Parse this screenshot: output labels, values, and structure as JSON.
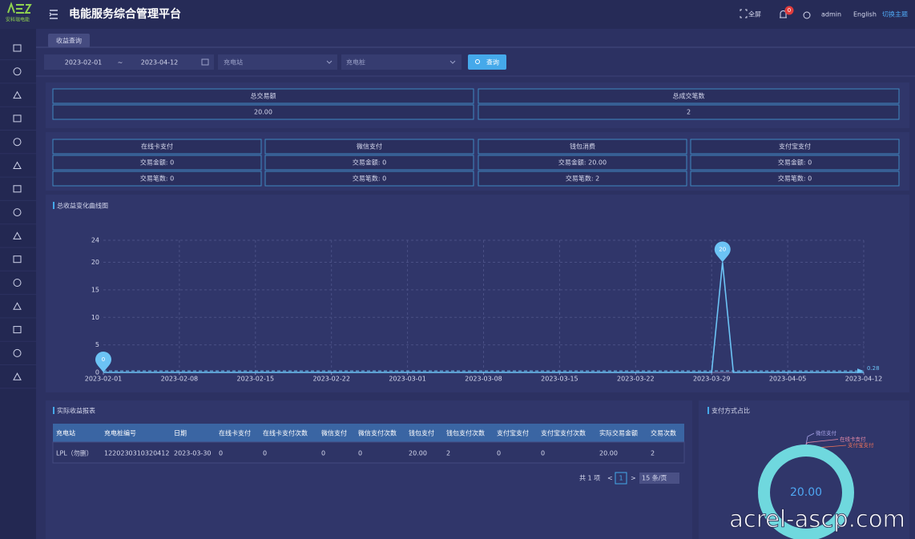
{
  "header": {
    "logo_text": "安科瑞电能",
    "title": "电能服务综合管理平台",
    "fullscreen": "全屏",
    "badge": "0",
    "user": "admin",
    "language": "English",
    "theme": "切换主题"
  },
  "tabs": [
    "收益查询"
  ],
  "filters": {
    "start_date": "2023-02-01",
    "separator": "~",
    "end_date": "2023-04-12",
    "station": "充电站",
    "pile": "充电桩",
    "button": "查询"
  },
  "summary": [
    {
      "label": "总交易额",
      "value": "20.00"
    },
    {
      "label": "总成交笔数",
      "value": "2"
    }
  ],
  "payments": [
    {
      "name": "在线卡支付",
      "amount": "交易金额: 0",
      "count": "交易笔数: 0"
    },
    {
      "name": "微信支付",
      "amount": "交易金额: 0",
      "count": "交易笔数: 0"
    },
    {
      "name": "钱包消费",
      "amount": "交易金额: 20.00",
      "count": "交易笔数: 2"
    },
    {
      "name": "支付宝支付",
      "amount": "交易金额: 0",
      "count": "交易笔数: 0"
    }
  ],
  "chart_data": [
    {
      "type": "line",
      "title": "总收益变化曲线图",
      "color": "#6cc3f5",
      "x": [
        "2023-02-01",
        "2023-02-02",
        "2023-02-03",
        "2023-02-04",
        "2023-02-05",
        "2023-02-06",
        "2023-02-07",
        "2023-02-08",
        "2023-02-09",
        "2023-02-10",
        "2023-02-11",
        "2023-02-12",
        "2023-02-13",
        "2023-02-14",
        "2023-02-15",
        "2023-02-16",
        "2023-02-17",
        "2023-02-18",
        "2023-02-19",
        "2023-02-20",
        "2023-02-21",
        "2023-02-22",
        "2023-02-23",
        "2023-02-24",
        "2023-02-25",
        "2023-02-26",
        "2023-02-27",
        "2023-02-28",
        "2023-03-01",
        "2023-03-02",
        "2023-03-03",
        "2023-03-04",
        "2023-03-05",
        "2023-03-06",
        "2023-03-07",
        "2023-03-08",
        "2023-03-09",
        "2023-03-10",
        "2023-03-11",
        "2023-03-12",
        "2023-03-13",
        "2023-03-14",
        "2023-03-15",
        "2023-03-16",
        "2023-03-17",
        "2023-03-18",
        "2023-03-19",
        "2023-03-20",
        "2023-03-21",
        "2023-03-22",
        "2023-03-23",
        "2023-03-24",
        "2023-03-25",
        "2023-03-26",
        "2023-03-27",
        "2023-03-28",
        "2023-03-29",
        "2023-03-30",
        "2023-03-31",
        "2023-04-01",
        "2023-04-02",
        "2023-04-03",
        "2023-04-04",
        "2023-04-05",
        "2023-04-06",
        "2023-04-07",
        "2023-04-08",
        "2023-04-09",
        "2023-04-10",
        "2023-04-11",
        "2023-04-12"
      ],
      "values": [
        0,
        0,
        0,
        0,
        0,
        0,
        0,
        0,
        0,
        0,
        0,
        0,
        0,
        0,
        0,
        0,
        0,
        0,
        0,
        0,
        0,
        0,
        0,
        0,
        0,
        0,
        0,
        0,
        0,
        0,
        0,
        0,
        0,
        0,
        0,
        0,
        0,
        0,
        0,
        0,
        0,
        0,
        0,
        0,
        0,
        0,
        0,
        0,
        0,
        0,
        0,
        0,
        0,
        0,
        0,
        0,
        0,
        20,
        0,
        0,
        0,
        0,
        0,
        0,
        0,
        0,
        0,
        0,
        0,
        0,
        0
      ],
      "xticks": [
        "2023-02-01",
        "2023-02-08",
        "2023-02-15",
        "2023-02-22",
        "2023-03-01",
        "2023-03-08",
        "2023-03-15",
        "2023-03-22",
        "2023-03-29",
        "2023-04-05",
        "2023-04-12"
      ],
      "ylim": [
        0,
        24
      ],
      "yticks": [
        0,
        5,
        10,
        15,
        20,
        24
      ],
      "grid": true,
      "mark_points": [
        {
          "x": "2023-03-30",
          "value": 20
        },
        {
          "x": "2023-02-01",
          "value": 0
        }
      ],
      "mark_line": {
        "value": 0.28
      }
    },
    {
      "type": "donut",
      "title": "支付方式占比",
      "center_text": "20.00",
      "categories": [
        "微信支付",
        "在线卡支付",
        "支付宝支付",
        null
      ],
      "values": [
        0,
        0,
        0,
        20
      ],
      "colors": [
        "#a7a3e8",
        "#e58aa8",
        "#e8705a",
        "#6fd8de"
      ]
    }
  ],
  "table": {
    "title": "实际收益报表",
    "headers": [
      "充电站",
      "充电桩编号",
      "日期",
      "在线卡支付",
      "在线卡支付次数",
      "微信支付",
      "微信支付次数",
      "钱包支付",
      "钱包支付次数",
      "支付宝支付",
      "支付宝支付次数",
      "实际交易金额",
      "交易次数"
    ],
    "rows": [
      [
        "LPL（勿删）",
        "1220230310320412",
        "2023-03-30",
        "0",
        "0",
        "0",
        "0",
        "20.00",
        "2",
        "0",
        "0",
        "20.00",
        "2"
      ]
    ]
  },
  "pagination": {
    "total": "共 1 项",
    "prev": "<",
    "page": "1",
    "next": ">",
    "size": "15 条/页"
  },
  "watermark": "acrel-ascp.com"
}
